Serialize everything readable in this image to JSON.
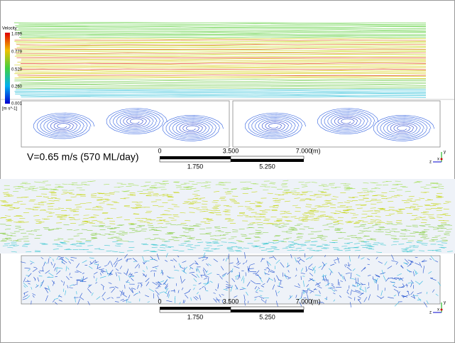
{
  "legend": {
    "title": "Velocity",
    "ticks": [
      "1.039",
      "0.779",
      "0.520",
      "0.260",
      "0.001"
    ],
    "unit": "[m s^-1]"
  },
  "top_panel": {
    "caption": "V=0.65 m/s (570 ML/day)",
    "scale_bar": {
      "labels_top": [
        "0",
        "3.500",
        "7.000"
      ],
      "unit": "(m)",
      "labels_bottom": [
        "1.750",
        "5.250"
      ]
    },
    "triad": [
      "y",
      "z",
      "x"
    ]
  },
  "bottom_panel": {
    "scale_bar": {
      "labels_top": [
        "0",
        "3.500",
        "7.000"
      ],
      "unit": "(m)",
      "labels_bottom": [
        "1.750",
        "5.250"
      ]
    },
    "triad": [
      "y",
      "z",
      "x"
    ]
  }
}
